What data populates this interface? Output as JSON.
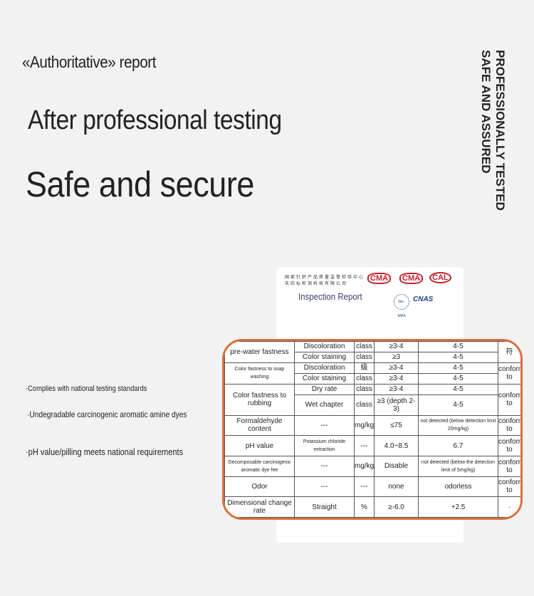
{
  "headline": {
    "small": "«Authoritative» report",
    "mid": "After professional testing",
    "big": "Safe and secure"
  },
  "vertical": {
    "line1": "PROFESSIONALLY TESTED",
    "line2": "SAFE AND ASSURED"
  },
  "bullets": [
    "·Complies with national testing standards",
    "·Undegradable carcinogenic aromatic amine dyes",
    "·pH value/pilling meets national requirements"
  ],
  "report": {
    "lab_name_line1": "国家针织产品质量监督检验中心",
    "lab_name_line2": "天纺标检测科技有限公司",
    "title": "Inspection Report",
    "logos": [
      "CMA",
      "CMA",
      "CAL",
      "ilac-MRA",
      "CNAS"
    ],
    "accent": "#d9703f"
  },
  "table": {
    "rows": [
      [
        {
          "t": "pre-water fastness",
          "rs": 2
        },
        {
          "t": "Discoloration"
        },
        {
          "t": "class"
        },
        {
          "t": "≥3-4"
        },
        {
          "t": "4-5"
        },
        {
          "t": "符",
          "rs": 2
        }
      ],
      [
        {
          "t": "Color staining"
        },
        {
          "t": "class"
        },
        {
          "t": "≥3"
        },
        {
          "t": "4-5"
        }
      ],
      [
        {
          "t": "Color fastness to soap washing",
          "rs": 2
        },
        {
          "t": "Discoloration"
        },
        {
          "t": "级"
        },
        {
          "t": "≥3-4"
        },
        {
          "t": "4-5"
        },
        {
          "t": "conform to",
          "rs": 2
        }
      ],
      [
        {
          "t": "Color staining"
        },
        {
          "t": "class"
        },
        {
          "t": "≥3-4"
        },
        {
          "t": "4-5"
        }
      ],
      [
        {
          "t": "Color fastness to rubbing",
          "rs": 2
        },
        {
          "t": "Dry rate"
        },
        {
          "t": "class"
        },
        {
          "t": "≥3-4"
        },
        {
          "t": "4-5"
        },
        {
          "t": "conform to",
          "rs": 2
        }
      ],
      [
        {
          "t": "Wet chapter"
        },
        {
          "t": "class"
        },
        {
          "t": "≥3 (depth 2-3)"
        },
        {
          "t": "4-5"
        }
      ],
      [
        {
          "t": "Formaldehyde content"
        },
        {
          "t": "---"
        },
        {
          "t": "mg/kg"
        },
        {
          "t": "≤75"
        },
        {
          "t": "not detected (below detection limit 20mg/kg)"
        },
        {
          "t": "conform to"
        }
      ],
      [
        {
          "t": "pH value"
        },
        {
          "t": "Potassium chloride extraction"
        },
        {
          "t": "---"
        },
        {
          "t": "4.0~8.5"
        },
        {
          "t": "6.7"
        },
        {
          "t": "conform to"
        }
      ],
      [
        {
          "t": "Decomposable carcinogenic aromatic dye fee"
        },
        {
          "t": "---"
        },
        {
          "t": "mg/kg"
        },
        {
          "t": "Disable"
        },
        {
          "t": "not detected (below the detection limit of 5mg/kg)"
        },
        {
          "t": "conform to"
        }
      ],
      [
        {
          "t": "Odor"
        },
        {
          "t": "---"
        },
        {
          "t": "---"
        },
        {
          "t": "none"
        },
        {
          "t": "odorless"
        },
        {
          "t": "conform to"
        }
      ],
      [
        {
          "t": "Dimensional change rate"
        },
        {
          "t": "Straight"
        },
        {
          "t": "%"
        },
        {
          "t": "≥-6.0"
        },
        {
          "t": "+2.5"
        },
        {
          "t": "·"
        }
      ]
    ]
  }
}
